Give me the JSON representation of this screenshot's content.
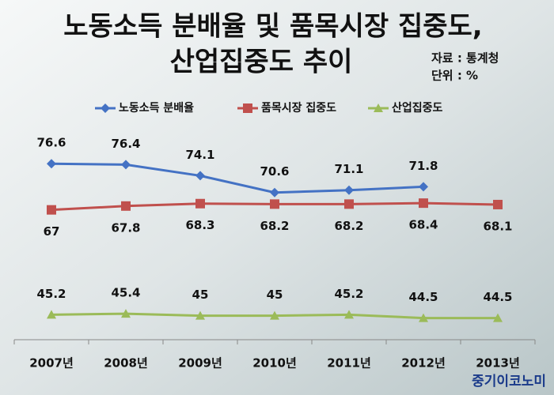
{
  "chart_data": {
    "type": "line",
    "title": [
      "노동소득 분배율 및 품목시장 집중도,",
      "산업집중도 추이"
    ],
    "source": "자료 : 통계청",
    "unit": "단위 : %",
    "watermark": "중기이코노미",
    "categories": [
      "2007년",
      "2008년",
      "2009년",
      "2010년",
      "2011년",
      "2012년",
      "2013년"
    ],
    "series": [
      {
        "name": "노동소득 분배율",
        "color": "#4472c4",
        "values": [
          76.6,
          76.4,
          74.1,
          70.6,
          71.1,
          71.8,
          null
        ]
      },
      {
        "name": "품목시장 집중도",
        "color": "#c0504d",
        "values": [
          67,
          67.8,
          68.3,
          68.2,
          68.2,
          68.4,
          68.1
        ]
      },
      {
        "name": "산업집중도",
        "color": "#9bbb59",
        "values": [
          45.2,
          45.4,
          45,
          45,
          45.2,
          44.5,
          44.5
        ]
      }
    ],
    "ylim": [
      40,
      86
    ],
    "legend": "top"
  }
}
